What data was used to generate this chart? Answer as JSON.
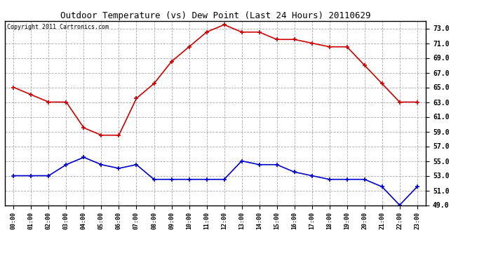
{
  "title": "Outdoor Temperature (vs) Dew Point (Last 24 Hours) 20110629",
  "copyright": "Copyright 2011 Cartronics.com",
  "hours": [
    "00:00",
    "01:00",
    "02:00",
    "03:00",
    "04:00",
    "05:00",
    "06:00",
    "07:00",
    "08:00",
    "09:00",
    "10:00",
    "11:00",
    "12:00",
    "13:00",
    "14:00",
    "15:00",
    "16:00",
    "17:00",
    "18:00",
    "19:00",
    "20:00",
    "21:00",
    "22:00",
    "23:00"
  ],
  "temp": [
    65.0,
    64.0,
    63.0,
    63.0,
    59.5,
    58.5,
    58.5,
    63.5,
    65.5,
    68.5,
    70.5,
    72.5,
    73.5,
    72.5,
    72.5,
    71.5,
    71.5,
    71.0,
    70.5,
    70.5,
    68.0,
    65.5,
    63.0,
    63.0
  ],
  "dew": [
    53.0,
    53.0,
    53.0,
    54.5,
    55.5,
    54.5,
    54.0,
    54.5,
    52.5,
    52.5,
    52.5,
    52.5,
    52.5,
    55.0,
    54.5,
    54.5,
    53.5,
    53.0,
    52.5,
    52.5,
    52.5,
    51.5,
    49.0,
    51.5
  ],
  "temp_color": "#cc0000",
  "dew_color": "#0000cc",
  "bg_color": "#ffffff",
  "plot_bg_color": "#ffffff",
  "grid_color": "#aaaaaa",
  "ylim_min": 49.0,
  "ylim_max": 74.0,
  "ytick_step": 2.0,
  "title_fontsize": 9,
  "copyright_fontsize": 6,
  "tick_fontsize": 7,
  "xtick_fontsize": 6
}
